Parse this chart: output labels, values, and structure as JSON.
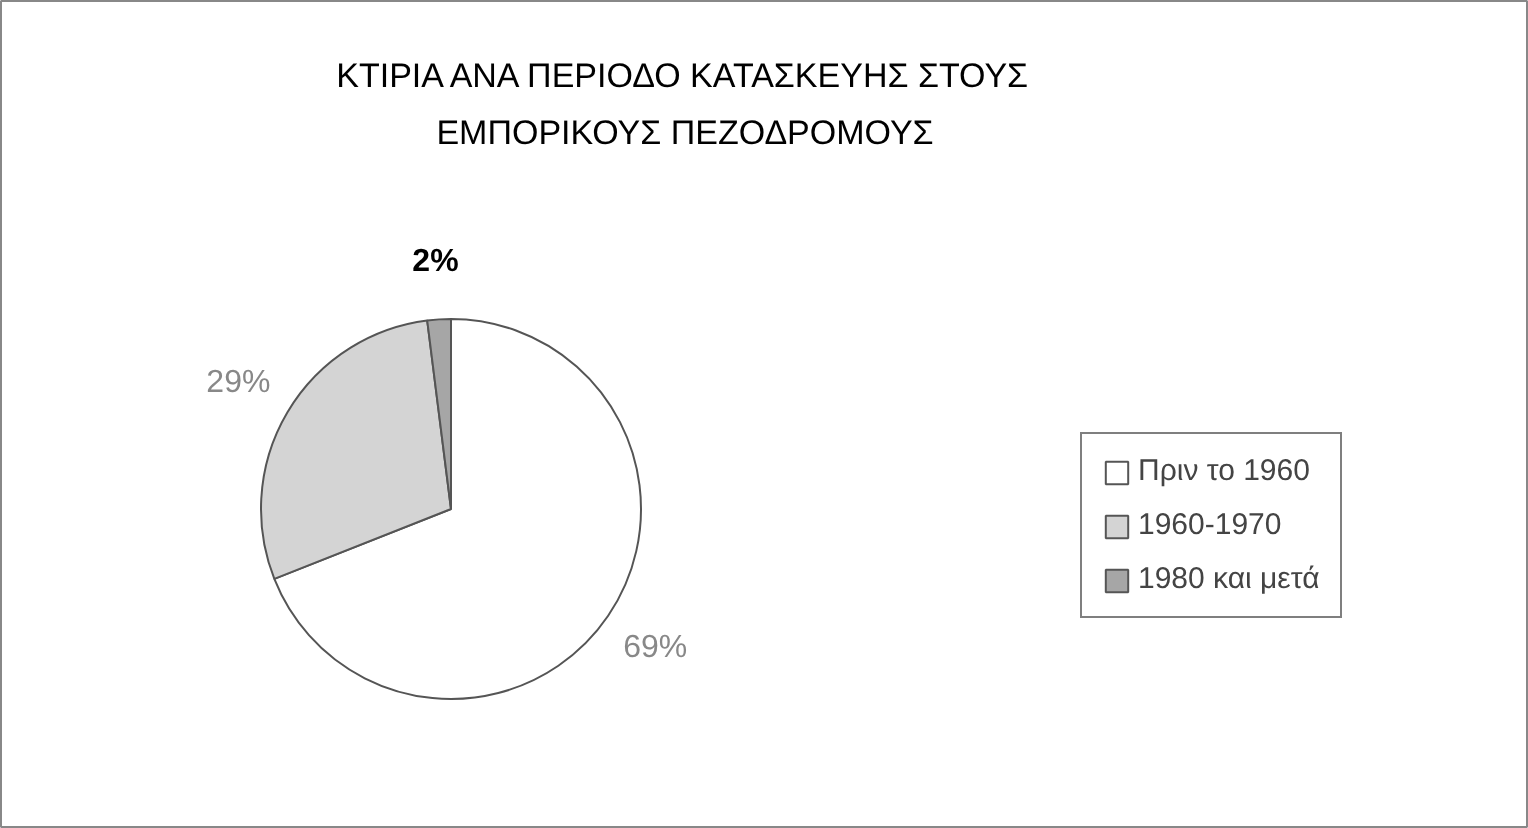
{
  "chart_data": {
    "type": "pie",
    "title": "ΚΤΙΡΙΑ ΑΝΑ ΠΕΡΙΟΔΟ ΚΑΤΑΣΚΕΥΗΣ ΣΤΟΥΣ\nΕΜΠΟΡΙΚΟΥΣ ΠΕΖΟΔΡΟΜΟΥΣ",
    "categories": [
      "Πριν το 1960",
      "1960-1970",
      "1980 και μετά"
    ],
    "values": [
      69,
      29,
      2
    ],
    "colors": [
      "#ffffff",
      "#d4d4d4",
      "#a6a6a6"
    ],
    "value_labels": [
      "69%",
      "29%",
      "2%"
    ],
    "legend": "right"
  }
}
